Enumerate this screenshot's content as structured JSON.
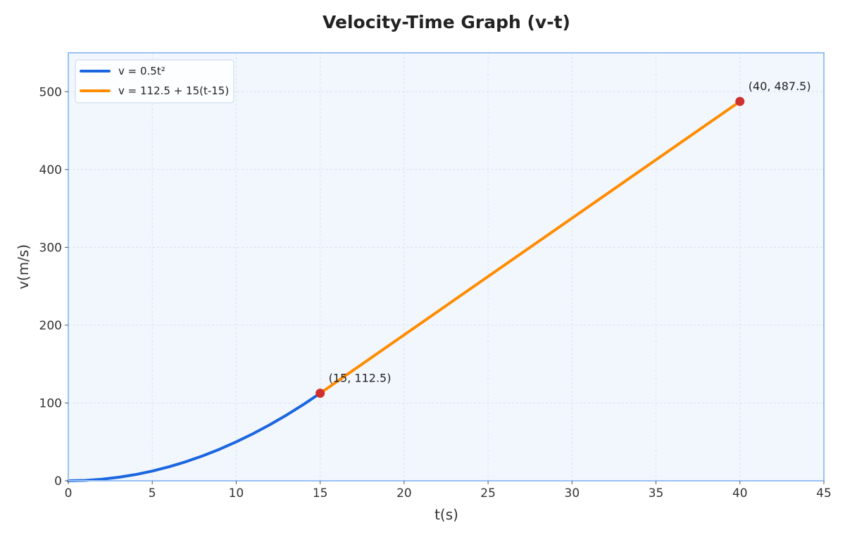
{
  "chart_data": {
    "type": "line",
    "title": "Velocity-Time Graph (v-t)",
    "xlabel": "t(s)",
    "ylabel": "v(m/s)",
    "xlim": [
      0,
      45
    ],
    "ylim": [
      0,
      550
    ],
    "xticks": [
      0,
      5,
      10,
      15,
      20,
      25,
      30,
      35,
      40,
      45
    ],
    "yticks": [
      0,
      100,
      200,
      300,
      400,
      500
    ],
    "grid": true,
    "legend_position": "top-left",
    "series": [
      {
        "name": "v = 0.5t²",
        "color": "#1a66e0",
        "x": [
          0,
          1,
          2,
          3,
          4,
          5,
          6,
          7,
          8,
          9,
          10,
          11,
          12,
          13,
          14,
          15
        ],
        "y": [
          0,
          0.5,
          2,
          4.5,
          8,
          12.5,
          18,
          24.5,
          32,
          40.5,
          50,
          60.5,
          72,
          84.5,
          98,
          112.5
        ]
      },
      {
        "name": "v = 112.5 + 15(t-15)",
        "color": "#ff8c00",
        "x": [
          15,
          40
        ],
        "y": [
          112.5,
          487.5
        ]
      }
    ],
    "points": [
      {
        "x": 15,
        "y": 112.5,
        "label": "(15, 112.5)",
        "color": "#d03030"
      },
      {
        "x": 40,
        "y": 487.5,
        "label": "(40, 487.5)",
        "color": "#d03030"
      }
    ],
    "colors": {
      "plot_background": "#f2f7fe",
      "plot_border": "#99c2f2",
      "grid": "#d8e2ee"
    }
  }
}
